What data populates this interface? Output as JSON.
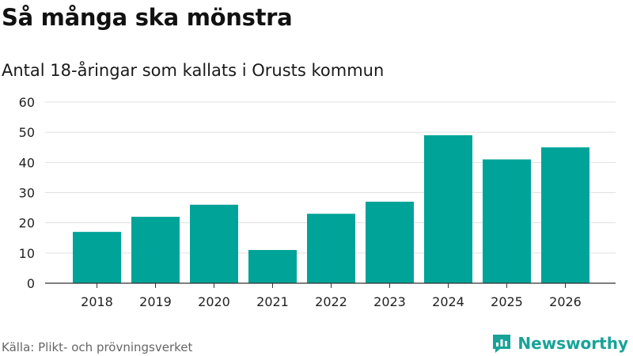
{
  "colors": {
    "bar": "#00a398",
    "grid": "#e1e1e1",
    "axis": "#333333",
    "brand": "#17a398"
  },
  "header": {
    "title": "Så många ska mönstra",
    "subtitle": "Antal 18-åringar som kallats i Orusts kommun"
  },
  "footer": {
    "source": "Källa: Plikt- och prövningsverket",
    "brand_name": "Newsworthy",
    "brand_icon": "newsworthy-logo-icon"
  },
  "chart_data": {
    "type": "bar",
    "title": "Så många ska mönstra",
    "subtitle": "Antal 18-åringar som kallats i Orusts kommun",
    "categories": [
      "2018",
      "2019",
      "2020",
      "2021",
      "2022",
      "2023",
      "2024",
      "2025",
      "2026"
    ],
    "values": [
      17,
      22,
      26,
      11,
      23,
      27,
      49,
      41,
      45
    ],
    "xlabel": "",
    "ylabel": "",
    "ylim": [
      0,
      60
    ],
    "yticks": [
      0,
      10,
      20,
      30,
      40,
      50,
      60
    ],
    "grid": true,
    "legend": "none"
  }
}
